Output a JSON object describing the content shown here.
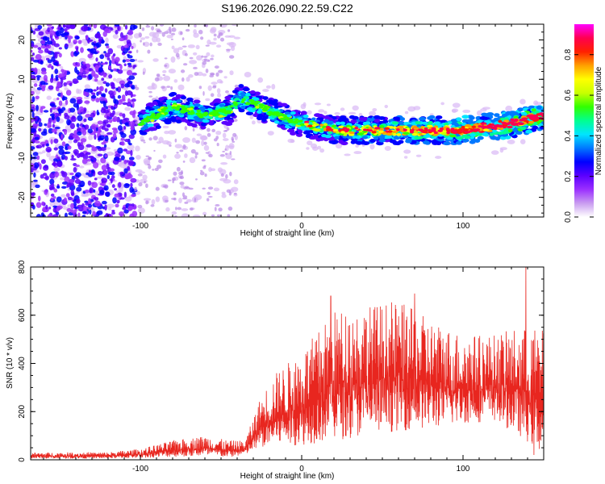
{
  "title": "S196.2026.090.22.59.C22",
  "colors": {
    "snr_line": "#e8261f",
    "background": "#ffffff",
    "axes": "#000000"
  },
  "chart_data": [
    {
      "type": "heatmap",
      "name": "spectrogram",
      "xlabel": "Height of straight line (km)",
      "ylabel": "Frequency (Hz)",
      "xlim": [
        -168,
        150
      ],
      "ylim": [
        -25,
        24
      ],
      "xticks": [
        -100,
        0,
        100
      ],
      "yticks": [
        -20,
        -10,
        0,
        10,
        20
      ],
      "xtick_labels": [
        "-100",
        "0",
        "100"
      ],
      "ytick_labels": [
        "-20",
        "-10",
        "0",
        "10",
        "20"
      ],
      "trace_ridge": [
        {
          "x": -100,
          "y": -1
        },
        {
          "x": -80,
          "y": 3
        },
        {
          "x": -60,
          "y": 1
        },
        {
          "x": -45,
          "y": 2
        },
        {
          "x": -38,
          "y": 5
        },
        {
          "x": -25,
          "y": 3
        },
        {
          "x": -10,
          "y": 0
        },
        {
          "x": 0,
          "y": -1
        },
        {
          "x": 20,
          "y": -3
        },
        {
          "x": 40,
          "y": -3
        },
        {
          "x": 60,
          "y": -3
        },
        {
          "x": 80,
          "y": -3
        },
        {
          "x": 100,
          "y": -3
        },
        {
          "x": 120,
          "y": -2
        },
        {
          "x": 135,
          "y": -1
        },
        {
          "x": 150,
          "y": 1
        }
      ],
      "noise_region_x": [
        -168,
        -103
      ],
      "colorbar": {
        "label": "Normalized spectral amplitude",
        "range": [
          0,
          0.95
        ],
        "ticks": [
          0.0,
          0.2,
          0.4,
          0.6,
          0.8
        ],
        "tick_labels": [
          "0.0",
          "0.2",
          "0.4",
          "0.6",
          "0.8"
        ],
        "colormap": [
          "#ffffff",
          "#c99cf0",
          "#9b30ff",
          "#5b00ff",
          "#0000ff",
          "#0078ff",
          "#00e5ff",
          "#00ff90",
          "#32ff00",
          "#c8ff00",
          "#ffff00",
          "#ffa000",
          "#ff2000",
          "#ff0050",
          "#ff00ff"
        ]
      }
    },
    {
      "type": "line",
      "name": "snr",
      "xlabel": "Height of straight line (km)",
      "ylabel": "SNR (10 * v/v)",
      "xlim": [
        -168,
        150
      ],
      "ylim": [
        0,
        800
      ],
      "xticks": [
        -100,
        0,
        100
      ],
      "yticks": [
        0,
        200,
        400,
        600,
        800
      ],
      "xtick_labels": [
        "-100",
        "0",
        "100"
      ],
      "ytick_labels": [
        "0",
        "200",
        "400",
        "600",
        "800"
      ],
      "envelope": [
        {
          "x": -168,
          "lo": 5,
          "hi": 30
        },
        {
          "x": -120,
          "lo": 5,
          "hi": 32
        },
        {
          "x": -100,
          "lo": 8,
          "hi": 45
        },
        {
          "x": -80,
          "lo": 12,
          "hi": 80
        },
        {
          "x": -60,
          "lo": 15,
          "hi": 100
        },
        {
          "x": -45,
          "lo": 10,
          "hi": 80
        },
        {
          "x": -35,
          "lo": 20,
          "hi": 80
        },
        {
          "x": -25,
          "lo": 50,
          "hi": 270
        },
        {
          "x": -15,
          "lo": 60,
          "hi": 370
        },
        {
          "x": 0,
          "lo": 60,
          "hi": 450
        },
        {
          "x": 20,
          "lo": 80,
          "hi": 620
        },
        {
          "x": 40,
          "lo": 100,
          "hi": 640
        },
        {
          "x": 60,
          "lo": 120,
          "hi": 660
        },
        {
          "x": 80,
          "lo": 130,
          "hi": 580
        },
        {
          "x": 100,
          "lo": 150,
          "hi": 520
        },
        {
          "x": 120,
          "lo": 160,
          "hi": 520
        },
        {
          "x": 135,
          "lo": 100,
          "hi": 550
        },
        {
          "x": 150,
          "lo": 20,
          "hi": 540
        }
      ],
      "peaks": [
        {
          "x": 18,
          "y": 680
        },
        {
          "x": 70,
          "y": 690
        },
        {
          "x": 139,
          "y": 800
        },
        {
          "x": 144,
          "y": 20
        }
      ]
    }
  ]
}
